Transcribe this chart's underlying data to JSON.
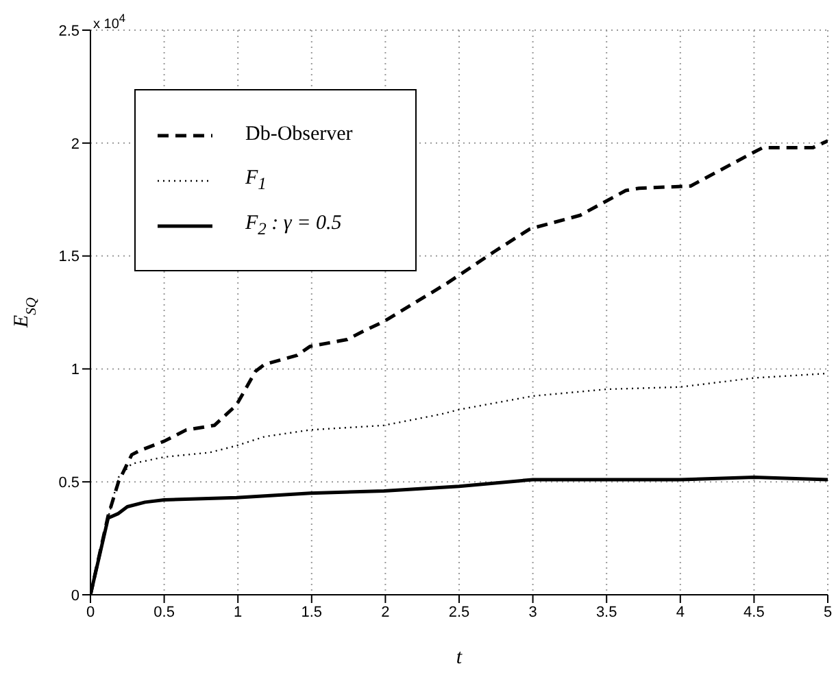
{
  "chart_data": {
    "type": "line",
    "xlabel": "t",
    "ylabel": "E$_{SQ}$",
    "annotations": [
      "x 10$^{4}$"
    ],
    "xlim": [
      0,
      5
    ],
    "xticks": [
      0,
      0.5,
      1,
      1.5,
      2,
      2.5,
      3,
      3.5,
      4,
      4.5,
      5
    ],
    "ylim": [
      0,
      2.5
    ],
    "yticks": [
      0,
      0.5,
      1,
      1.5,
      2,
      2.5
    ],
    "grid": true,
    "legend": "top left",
    "marker": "none",
    "series": [
      {
        "name": "Db-Observer",
        "color": "#000000",
        "line_style": "dashed",
        "x": [
          0,
          0.12,
          0.19,
          0.28,
          0.34,
          0.5,
          0.65,
          0.84,
          0.99,
          1.12,
          1.18,
          1.4,
          1.49,
          1.74,
          1.86,
          1.99,
          2.42,
          2.74,
          2.98,
          3.32,
          3.63,
          3.72,
          4.07,
          4.5,
          4.56,
          4.9,
          5
        ],
        "values": [
          0,
          0.35,
          0.5,
          0.62,
          0.64,
          0.68,
          0.73,
          0.75,
          0.84,
          0.99,
          1.02,
          1.06,
          1.1,
          1.13,
          1.17,
          1.21,
          1.38,
          1.52,
          1.62,
          1.68,
          1.79,
          1.8,
          1.81,
          1.96,
          1.98,
          1.98,
          2.01
        ]
      },
      {
        "name": "F$_{1}$",
        "color": "#000000",
        "line_style": "dotted",
        "x": [
          0,
          0.12,
          0.19,
          0.28,
          0.5,
          0.81,
          0.99,
          1.18,
          1.49,
          1.99,
          2.38,
          2.5,
          3,
          3.5,
          4,
          4.5,
          5
        ],
        "values": [
          0,
          0.34,
          0.52,
          0.58,
          0.61,
          0.63,
          0.66,
          0.7,
          0.73,
          0.75,
          0.8,
          0.82,
          0.88,
          0.91,
          0.92,
          0.96,
          0.98
        ]
      },
      {
        "name": "F$_{2}$ : γ = 0.5",
        "color": "#000000",
        "line_style": "solid",
        "x": [
          0,
          0.12,
          0.19,
          0.25,
          0.37,
          0.5,
          0.99,
          1.49,
          1.99,
          2.5,
          3,
          3.5,
          4,
          4.5,
          5
        ],
        "values": [
          0,
          0.34,
          0.36,
          0.39,
          0.41,
          0.42,
          0.43,
          0.45,
          0.46,
          0.48,
          0.51,
          0.51,
          0.51,
          0.52,
          0.51
        ]
      }
    ]
  }
}
